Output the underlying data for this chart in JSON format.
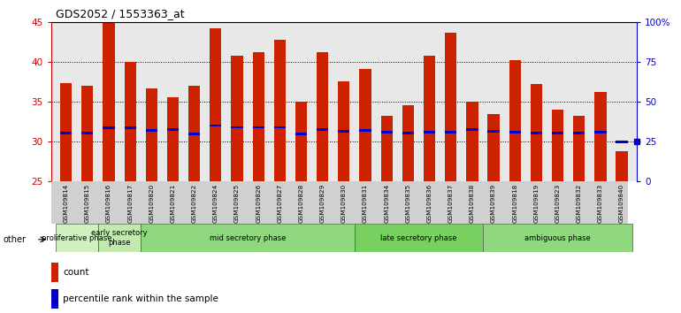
{
  "title": "GDS2052 / 1553363_at",
  "samples": [
    "GSM109814",
    "GSM109815",
    "GSM109816",
    "GSM109817",
    "GSM109820",
    "GSM109821",
    "GSM109822",
    "GSM109824",
    "GSM109825",
    "GSM109826",
    "GSM109827",
    "GSM109828",
    "GSM109829",
    "GSM109830",
    "GSM109831",
    "GSM109834",
    "GSM109835",
    "GSM109836",
    "GSM109837",
    "GSM109838",
    "GSM109839",
    "GSM109818",
    "GSM109819",
    "GSM109823",
    "GSM109832",
    "GSM109833",
    "GSM109840"
  ],
  "counts": [
    37.3,
    37.0,
    45.0,
    40.0,
    36.7,
    35.6,
    37.0,
    44.2,
    40.8,
    41.2,
    42.8,
    35.0,
    41.2,
    37.5,
    39.1,
    33.2,
    34.6,
    40.8,
    43.6,
    35.0,
    33.5,
    40.2,
    37.2,
    34.0,
    33.2,
    36.2,
    28.8
  ],
  "percentiles": [
    31.1,
    31.1,
    31.7,
    31.7,
    31.4,
    31.5,
    31.0,
    32.0,
    31.8,
    31.8,
    31.8,
    31.0,
    31.5,
    31.3,
    31.4,
    31.2,
    31.1,
    31.2,
    31.2,
    31.5,
    31.3,
    31.2,
    31.1,
    31.1,
    31.1,
    31.2,
    30.0
  ],
  "phases": [
    {
      "name": "proliferative phase",
      "start": 0,
      "end": 2,
      "color": "#d0f0c0"
    },
    {
      "name": "early secretory\nphase",
      "start": 2,
      "end": 4,
      "color": "#c0eab0"
    },
    {
      "name": "mid secretory phase",
      "start": 4,
      "end": 14,
      "color": "#90d880"
    },
    {
      "name": "late secretory phase",
      "start": 14,
      "end": 20,
      "color": "#78d060"
    },
    {
      "name": "ambiguous phase",
      "start": 20,
      "end": 27,
      "color": "#90d880"
    }
  ],
  "bar_color": "#cc2200",
  "percentile_color": "#0000cc",
  "bar_width": 0.55,
  "ylim_left": [
    25,
    45
  ],
  "ylim_right": [
    0,
    100
  ],
  "yticks_left": [
    25,
    30,
    35,
    40,
    45
  ],
  "yticks_right": [
    0,
    25,
    50,
    75,
    100
  ],
  "grid_color": "#000000",
  "axis_color": "#cc0000",
  "right_axis_color": "#0000cc",
  "bg_plot": "#e8e8e8",
  "phase_border_color": "#888888"
}
